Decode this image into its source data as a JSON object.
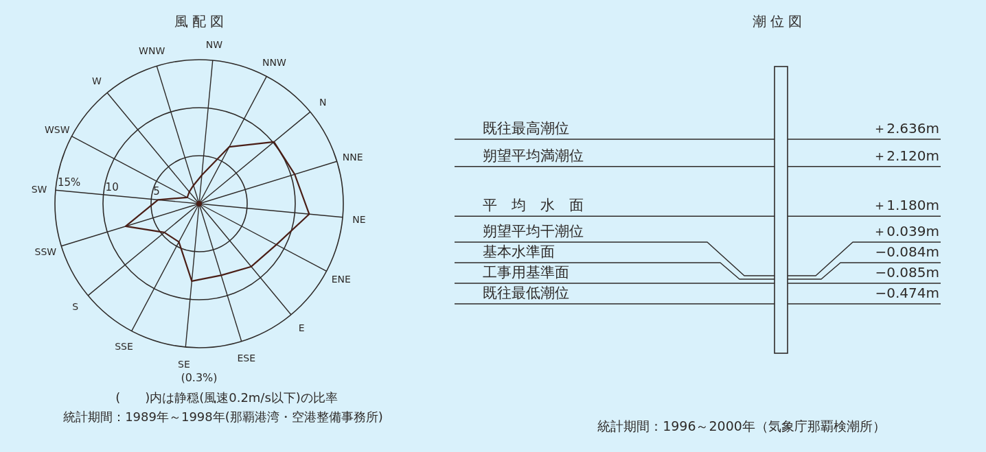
{
  "chart_data": [
    {
      "type": "radar",
      "title": "風 配 図",
      "categories": [
        "NW",
        "NNW",
        "N",
        "NNE",
        "NE",
        "ENE",
        "E",
        "ESE",
        "SE",
        "SSE",
        "S",
        "SSW",
        "SW",
        "WSW",
        "W",
        "WNW"
      ],
      "series": [
        {
          "color": "#4a1e16",
          "values": [
            3.0,
            6.7,
            10.1,
            10.4,
            11.5,
            9.1,
            8.5,
            7.8,
            8.1,
            4.5,
            4.7,
            8.0,
            4.3,
            1.4,
            1.6,
            2.0
          ]
        }
      ],
      "ylim": [
        0,
        15
      ],
      "yticks": [
        5,
        10,
        {
          "value": 15,
          "label": "15%"
        }
      ],
      "grid": true,
      "annotations": [
        "(0.3%)",
        "(　　)内は静穏(風速0.2m/s以下)の比率",
        "統計期間：1989年～1998年(那覇港湾・空港整備事務所)"
      ]
    },
    {
      "type": "other",
      "title": "潮 位 図",
      "categories": [
        "既往最高潮位",
        "朔望平均満潮位",
        "平　均　水　面",
        "朔望平均干潮位",
        "基本水準面",
        "工事用基準面",
        "既往最低潮位"
      ],
      "values": [
        2.636,
        2.12,
        1.18,
        0.039,
        -0.084,
        -0.085,
        -0.474
      ],
      "value_labels": [
        "＋2.636m",
        "＋2.120m",
        "＋1.180m",
        "＋0.039m",
        "−0.084m",
        "−0.085m",
        "−0.474m"
      ],
      "annotations": [
        "統計期間：1996～2000年（気象庁那覇検潮所）"
      ]
    }
  ]
}
